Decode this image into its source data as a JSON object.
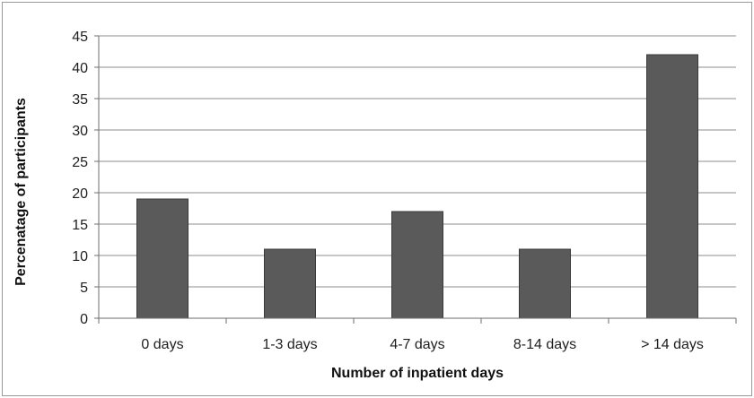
{
  "chart_data": {
    "type": "bar",
    "title": "",
    "xlabel": "Number of inpatient days",
    "ylabel": "Percenatage of participants",
    "categories": [
      "0 days",
      "1-3 days",
      "4-7 days",
      "8-14 days",
      "> 14 days"
    ],
    "values": [
      19,
      11,
      17,
      11,
      42
    ],
    "ylim": [
      0,
      45
    ],
    "yticks": [
      0,
      5,
      10,
      15,
      20,
      25,
      30,
      35,
      40,
      45
    ],
    "grid": true,
    "legend": "none",
    "colors": {
      "bar": "#5a5a5a",
      "bar_edge": "#3a3a3a",
      "grid": "#8c8c8c",
      "axis": "#6e6e6e"
    }
  }
}
